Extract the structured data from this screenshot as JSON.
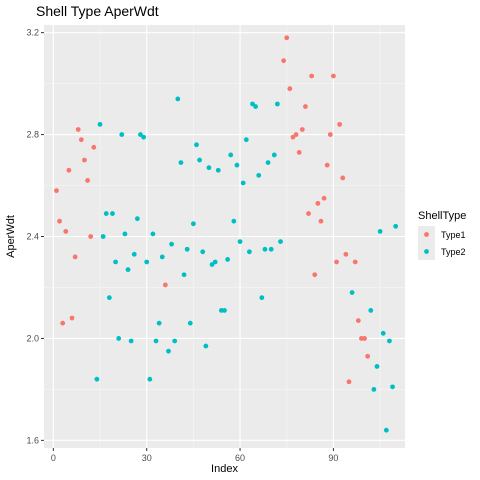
{
  "chart_data": {
    "type": "scatter",
    "title": "Shell Type AperWdt",
    "xlabel": "Index",
    "ylabel": "AperWdt",
    "xlim": [
      -3,
      113
    ],
    "ylim": [
      1.57,
      3.23
    ],
    "xticks": [
      0,
      30,
      60,
      90
    ],
    "yticks": [
      1.6,
      2.0,
      2.4,
      2.8,
      3.2
    ],
    "yticklabels": [
      "1.6",
      "2.0",
      "2.4",
      "2.8",
      "3.2"
    ],
    "grid": true,
    "legend": {
      "title": "ShellType",
      "position": "right"
    },
    "series": [
      {
        "name": "Type1",
        "color": "#F8766D",
        "points": [
          [
            1,
            2.58
          ],
          [
            2,
            2.46
          ],
          [
            3,
            2.06
          ],
          [
            4,
            2.42
          ],
          [
            5,
            2.66
          ],
          [
            6,
            2.08
          ],
          [
            7,
            2.32
          ],
          [
            8,
            2.82
          ],
          [
            9,
            2.78
          ],
          [
            10,
            2.7
          ],
          [
            11,
            2.62
          ],
          [
            12,
            2.4
          ],
          [
            13,
            2.75
          ],
          [
            36,
            2.21
          ],
          [
            74,
            3.09
          ],
          [
            75,
            3.18
          ],
          [
            76,
            2.98
          ],
          [
            77,
            2.79
          ],
          [
            78,
            2.8
          ],
          [
            79,
            2.73
          ],
          [
            80,
            2.82
          ],
          [
            81,
            2.91
          ],
          [
            82,
            2.49
          ],
          [
            83,
            3.03
          ],
          [
            84,
            2.25
          ],
          [
            85,
            2.53
          ],
          [
            86,
            2.46
          ],
          [
            87,
            2.55
          ],
          [
            88,
            2.68
          ],
          [
            89,
            2.8
          ],
          [
            90,
            3.03
          ],
          [
            91,
            2.3
          ],
          [
            92,
            2.84
          ],
          [
            93,
            2.63
          ],
          [
            94,
            2.33
          ],
          [
            95,
            1.83
          ],
          [
            97,
            2.3
          ],
          [
            98,
            2.07
          ],
          [
            99,
            2.0
          ],
          [
            100,
            2.0
          ],
          [
            101,
            1.93
          ]
        ]
      },
      {
        "name": "Type2",
        "color": "#00BFC4",
        "points": [
          [
            14,
            1.84
          ],
          [
            15,
            2.84
          ],
          [
            16,
            2.4
          ],
          [
            17,
            2.49
          ],
          [
            18,
            2.16
          ],
          [
            19,
            2.49
          ],
          [
            20,
            2.3
          ],
          [
            21,
            2.0
          ],
          [
            22,
            2.8
          ],
          [
            23,
            2.41
          ],
          [
            24,
            2.27
          ],
          [
            25,
            1.99
          ],
          [
            26,
            2.33
          ],
          [
            27,
            2.47
          ],
          [
            28,
            2.8
          ],
          [
            29,
            2.79
          ],
          [
            30,
            2.3
          ],
          [
            31,
            1.84
          ],
          [
            32,
            2.41
          ],
          [
            33,
            1.99
          ],
          [
            34,
            2.06
          ],
          [
            35,
            2.32
          ],
          [
            37,
            1.95
          ],
          [
            38,
            2.37
          ],
          [
            39,
            1.99
          ],
          [
            40,
            2.94
          ],
          [
            41,
            2.69
          ],
          [
            42,
            2.25
          ],
          [
            43,
            2.35
          ],
          [
            44,
            2.06
          ],
          [
            45,
            2.45
          ],
          [
            46,
            2.76
          ],
          [
            47,
            2.7
          ],
          [
            48,
            2.34
          ],
          [
            49,
            1.97
          ],
          [
            50,
            2.67
          ],
          [
            51,
            2.29
          ],
          [
            52,
            2.3
          ],
          [
            53,
            2.66
          ],
          [
            54,
            2.11
          ],
          [
            55,
            2.11
          ],
          [
            56,
            2.31
          ],
          [
            57,
            2.72
          ],
          [
            58,
            2.46
          ],
          [
            59,
            2.68
          ],
          [
            60,
            2.38
          ],
          [
            61,
            2.61
          ],
          [
            62,
            2.78
          ],
          [
            63,
            2.34
          ],
          [
            64,
            2.92
          ],
          [
            65,
            2.91
          ],
          [
            66,
            2.64
          ],
          [
            67,
            2.16
          ],
          [
            68,
            2.35
          ],
          [
            69,
            2.69
          ],
          [
            70,
            2.35
          ],
          [
            71,
            2.72
          ],
          [
            72,
            2.92
          ],
          [
            73,
            2.38
          ],
          [
            96,
            2.18
          ],
          [
            102,
            2.11
          ],
          [
            103,
            1.8
          ],
          [
            104,
            1.89
          ],
          [
            105,
            2.42
          ],
          [
            106,
            2.02
          ],
          [
            107,
            1.64
          ],
          [
            108,
            1.99
          ],
          [
            109,
            1.81
          ],
          [
            110,
            2.44
          ]
        ]
      }
    ]
  }
}
